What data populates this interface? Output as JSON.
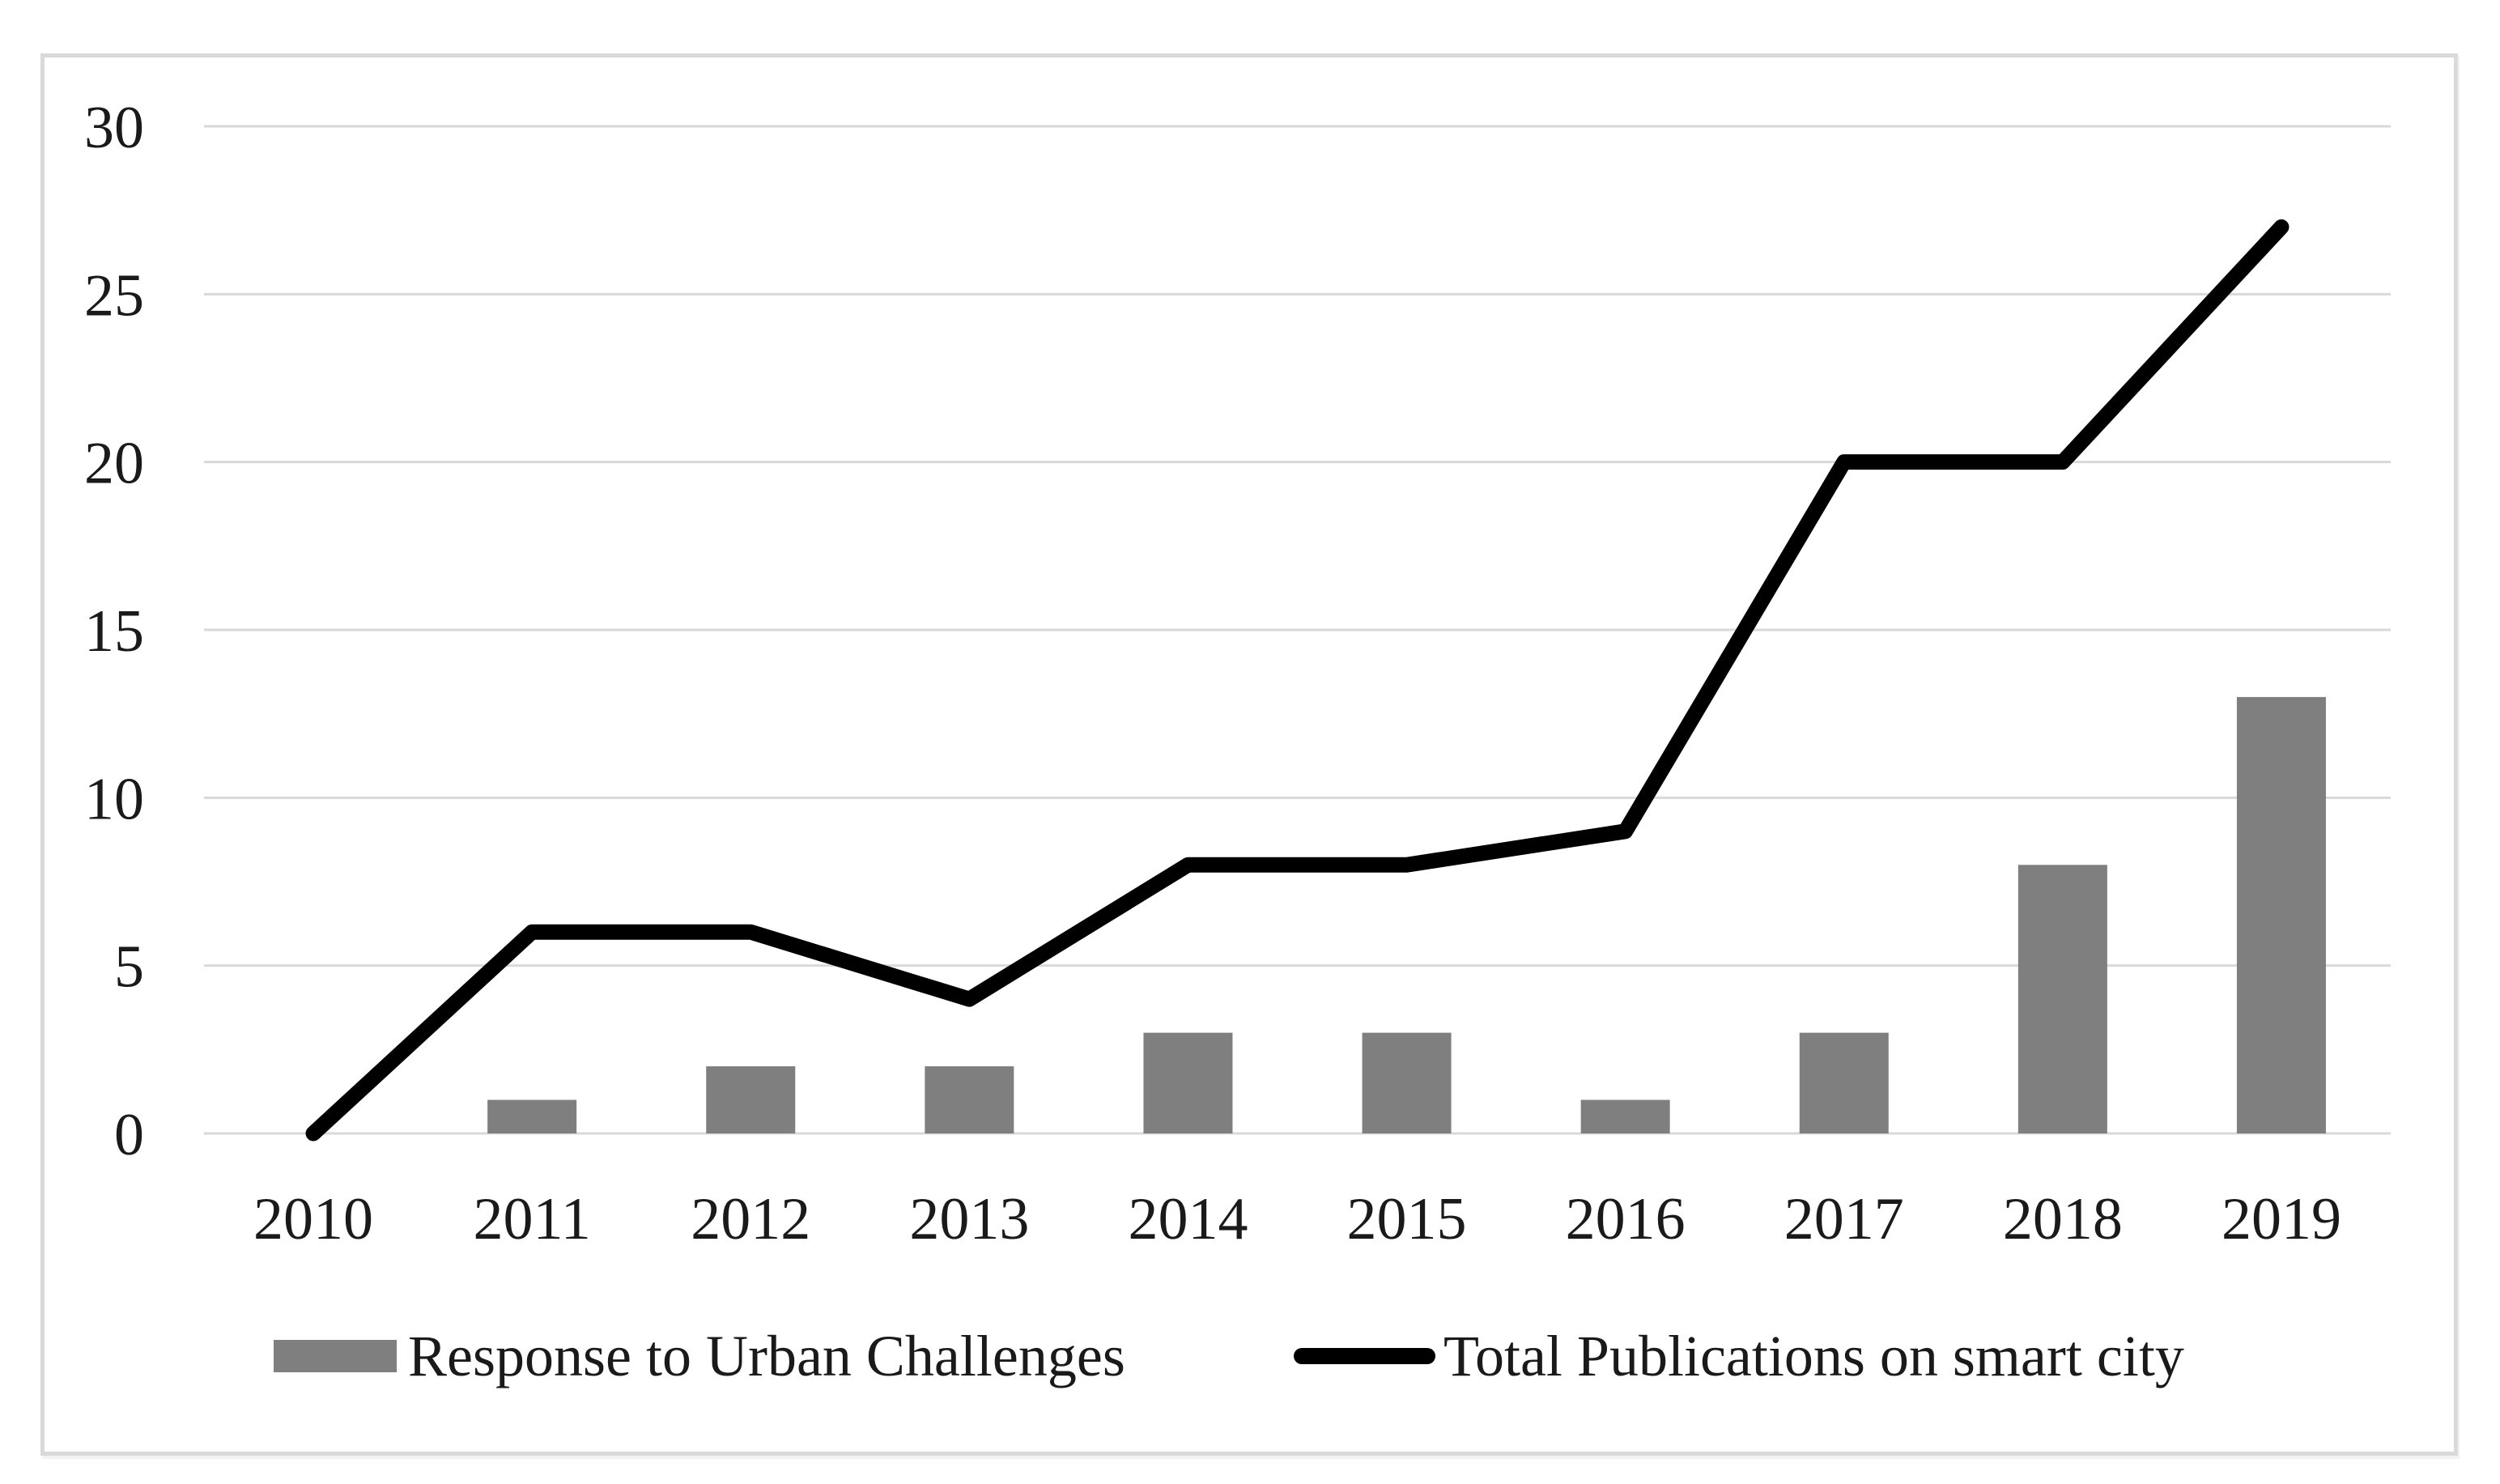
{
  "figure": {
    "background": "#ffffff",
    "border_color": "#d9d9d9"
  },
  "chart_data": {
    "type": "combo",
    "title": "",
    "xlabel": "",
    "ylabel": "",
    "categories": [
      "2010",
      "2011",
      "2012",
      "2013",
      "2014",
      "2015",
      "2016",
      "2017",
      "2018",
      "2019"
    ],
    "series": [
      {
        "name": "Response to Urban Challenges",
        "type": "bar",
        "color": "#7f7f7f",
        "values": [
          0,
          1,
          2,
          2,
          3,
          3,
          1,
          3,
          8,
          13
        ]
      },
      {
        "name": "Total Publications on smart city",
        "type": "line",
        "color": "#000000",
        "values": [
          0,
          6,
          6,
          4,
          8,
          8,
          9,
          20,
          20,
          27
        ]
      }
    ],
    "ylim": [
      0,
      30
    ],
    "yticks": [
      0,
      5,
      10,
      15,
      20,
      25,
      30
    ],
    "grid": "horizontal",
    "gridline_color": "#d9d9d9",
    "axis_text_color": "#1a1a1a",
    "legend_position": "bottom"
  }
}
